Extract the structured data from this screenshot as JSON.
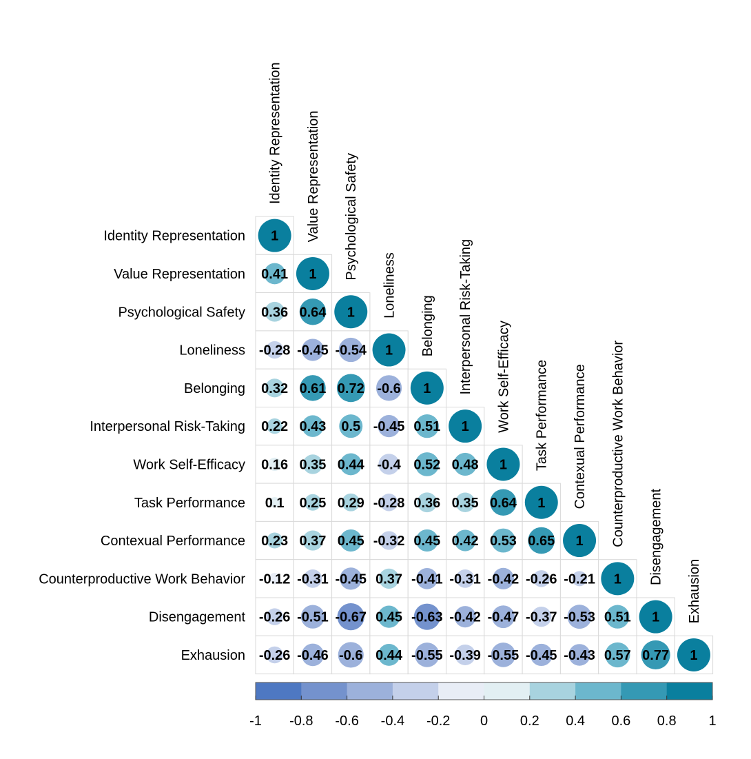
{
  "chart_data": {
    "type": "heatmap",
    "variables": [
      "Identity Representation",
      "Value Representation",
      "Psychological Safety",
      "Loneliness",
      "Belonging",
      "Interpersonal Risk-Taking",
      "Work Self-Efficacy",
      "Task Performance",
      "Contexual Performance",
      "Counterproductive Work Behavior",
      "Disengagement",
      "Exhausion"
    ],
    "lower_triangle_rows": [
      [
        1
      ],
      [
        0.41,
        1
      ],
      [
        0.36,
        0.64,
        1
      ],
      [
        -0.28,
        -0.45,
        -0.54,
        1
      ],
      [
        0.32,
        0.61,
        0.72,
        -0.6,
        1
      ],
      [
        0.22,
        0.43,
        0.5,
        -0.45,
        0.51,
        1
      ],
      [
        0.16,
        0.35,
        0.44,
        -0.4,
        0.52,
        0.48,
        1
      ],
      [
        0.1,
        0.25,
        0.29,
        -0.28,
        0.36,
        0.35,
        0.64,
        1
      ],
      [
        0.23,
        0.37,
        0.45,
        -0.32,
        0.45,
        0.42,
        0.53,
        0.65,
        1
      ],
      [
        -0.12,
        -0.31,
        -0.45,
        0.37,
        -0.41,
        -0.31,
        -0.42,
        -0.26,
        -0.21,
        1
      ],
      [
        -0.26,
        -0.51,
        -0.67,
        0.45,
        -0.63,
        -0.42,
        -0.47,
        -0.37,
        -0.53,
        0.51,
        1
      ],
      [
        -0.26,
        -0.46,
        -0.6,
        0.44,
        -0.55,
        -0.39,
        -0.55,
        -0.45,
        -0.43,
        0.57,
        0.77,
        1
      ]
    ],
    "color_scale": {
      "range": [
        -1,
        1
      ],
      "ticks": [
        "-1",
        "-0.8",
        "-0.6",
        "-0.4",
        "-0.2",
        "0",
        "0.2",
        "0.4",
        "0.6",
        "0.8",
        "1"
      ],
      "bins": [
        "#4E78C2",
        "#7492CD",
        "#9CB1DB",
        "#C4D0EA",
        "#E8EDF6",
        "#E2EFF3",
        "#A8D3DF",
        "#6CB7CD",
        "#3599B4",
        "#0A7F9E"
      ]
    },
    "marker": "circle",
    "grid_color": "#D9D9D9"
  }
}
